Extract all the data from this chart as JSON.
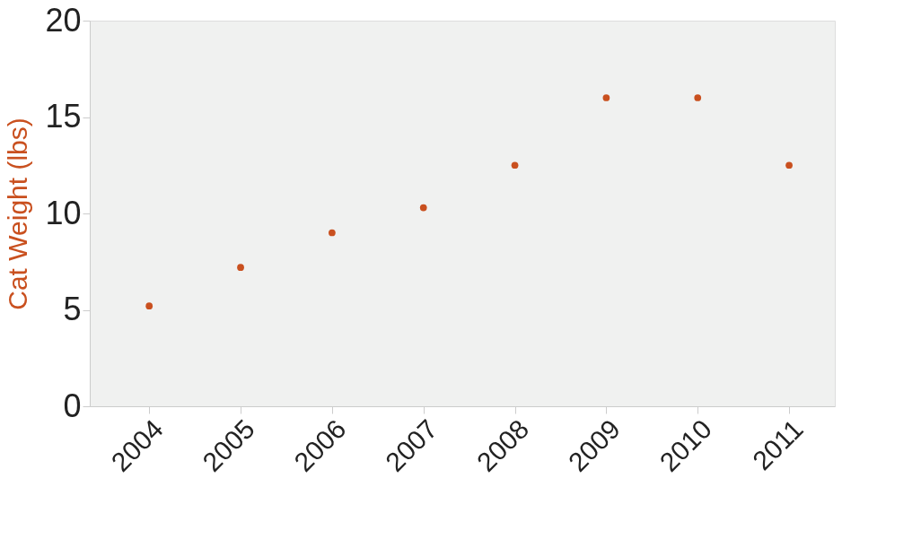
{
  "chart_data": {
    "type": "scatter",
    "ylabel": "Cat Weight (lbs)",
    "categories": [
      "2004",
      "2005",
      "2006",
      "2007",
      "2008",
      "2009",
      "2010",
      "2011"
    ],
    "series": [
      {
        "color": "#c9501f",
        "values": [
          5.2,
          7.2,
          9.0,
          10.3,
          12.5,
          16.0,
          16.0,
          12.5
        ]
      }
    ],
    "ylim": [
      0,
      20
    ],
    "yticks": [
      0,
      5,
      10,
      15,
      20
    ],
    "grid": false,
    "legend": false,
    "marker": "circle"
  }
}
